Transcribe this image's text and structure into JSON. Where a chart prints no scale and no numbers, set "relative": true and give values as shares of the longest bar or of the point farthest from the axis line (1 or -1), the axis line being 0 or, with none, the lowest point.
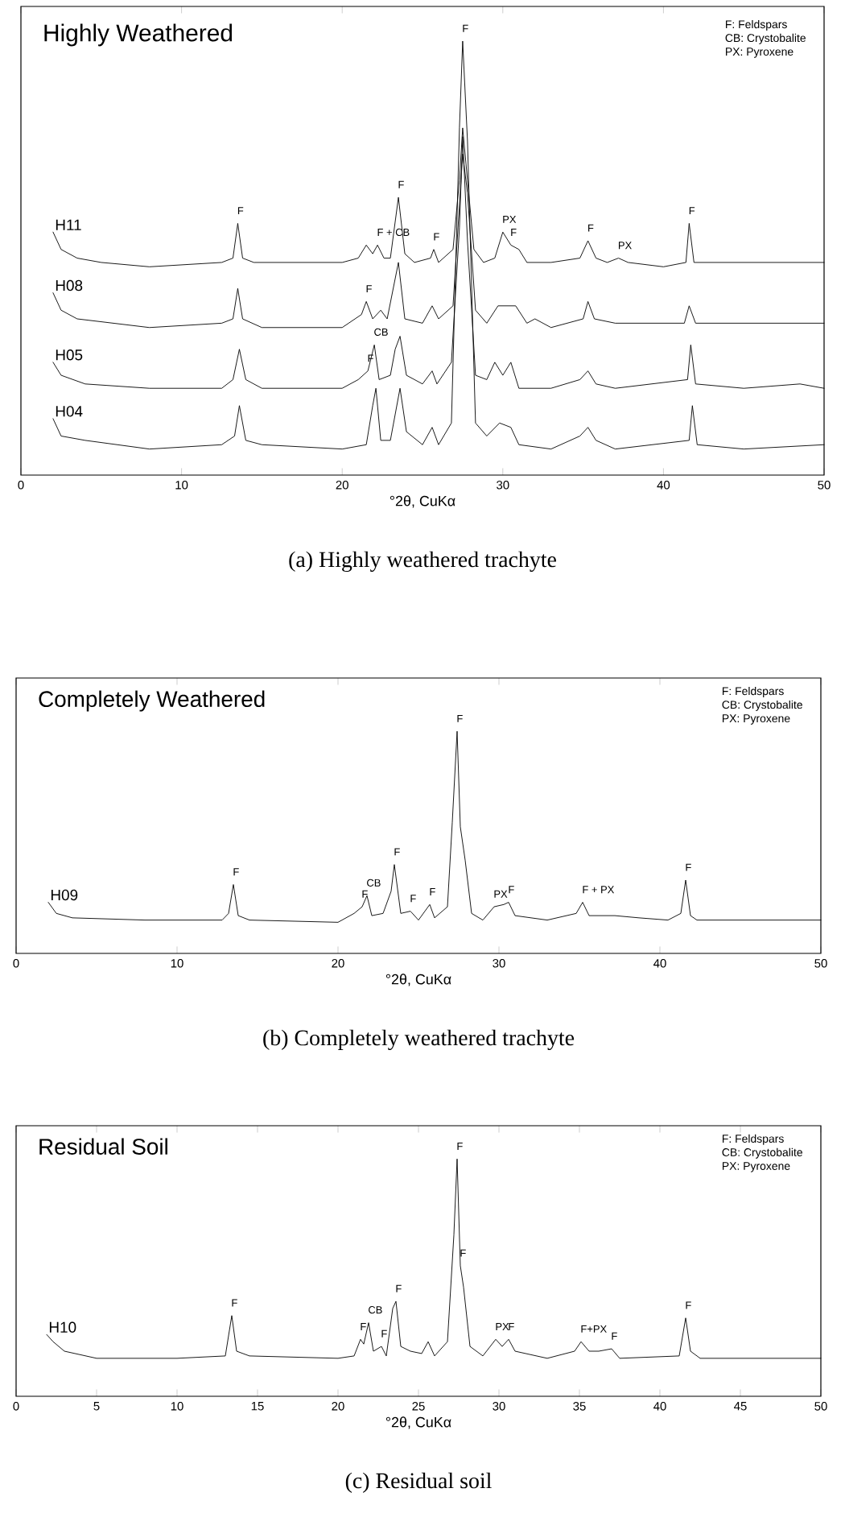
{
  "chart_data": [
    {
      "type": "line",
      "title": "Highly Weathered",
      "xlabel": "°2θ, CuKα",
      "xlim": [
        0,
        50
      ],
      "xticks": [
        0,
        10,
        20,
        30,
        40,
        50
      ],
      "relative": true,
      "series": [
        {
          "name": "H11",
          "color": "#000000",
          "x": [
            2.0,
            2.5,
            3.5,
            5,
            8,
            12.5,
            13.2,
            13.5,
            13.8,
            14.5,
            20,
            21,
            21.5,
            21.9,
            22.2,
            22.6,
            23.0,
            23.5,
            23.9,
            24.5,
            25.5,
            25.7,
            26.0,
            26.9,
            27.3,
            27.5,
            27.8,
            28.2,
            28.8,
            29.5,
            30,
            30.5,
            31,
            31.5,
            33,
            34.8,
            35.3,
            35.8,
            36.5,
            37.2,
            37.8,
            40,
            41.4,
            41.6,
            41.9,
            44,
            50
          ],
          "values": [
            0.56,
            0.52,
            0.5,
            0.49,
            0.48,
            0.49,
            0.5,
            0.58,
            0.5,
            0.49,
            0.49,
            0.5,
            0.53,
            0.51,
            0.53,
            0.5,
            0.5,
            0.64,
            0.51,
            0.49,
            0.5,
            0.52,
            0.49,
            0.52,
            0.68,
            0.8,
            0.68,
            0.52,
            0.49,
            0.5,
            0.56,
            0.53,
            0.52,
            0.49,
            0.49,
            0.5,
            0.54,
            0.5,
            0.49,
            0.5,
            0.49,
            0.48,
            0.49,
            0.58,
            0.49,
            0.49,
            0.49
          ]
        },
        {
          "name": "H08",
          "color": "#000000",
          "x": [
            2.0,
            2.5,
            3.5,
            8,
            12.5,
            13.2,
            13.5,
            13.8,
            15,
            20,
            21.2,
            21.5,
            21.9,
            22.4,
            22.8,
            23.5,
            23.9,
            25,
            25.6,
            26,
            26.9,
            27.4,
            27.5,
            27.8,
            28.3,
            29,
            29.7,
            30.3,
            30.8,
            31.5,
            32,
            33,
            35.0,
            35.3,
            35.7,
            37,
            41.3,
            41.6,
            42,
            50
          ],
          "values": [
            0.42,
            0.38,
            0.36,
            0.34,
            0.35,
            0.36,
            0.43,
            0.36,
            0.34,
            0.34,
            0.37,
            0.4,
            0.36,
            0.38,
            0.36,
            0.49,
            0.36,
            0.35,
            0.39,
            0.36,
            0.39,
            0.68,
            0.74,
            0.65,
            0.38,
            0.35,
            0.39,
            0.39,
            0.39,
            0.35,
            0.36,
            0.34,
            0.36,
            0.4,
            0.36,
            0.35,
            0.35,
            0.39,
            0.35,
            0.35
          ]
        },
        {
          "name": "H05",
          "color": "#000000",
          "x": [
            2.0,
            2.5,
            4,
            8,
            12.5,
            13.2,
            13.6,
            14.0,
            15,
            20,
            21.0,
            21.6,
            22.0,
            22.3,
            23.0,
            23.3,
            23.6,
            24.0,
            25.0,
            25.6,
            25.9,
            26.8,
            27.3,
            27.5,
            27.8,
            28.3,
            29,
            29.5,
            30,
            30.5,
            31,
            33,
            34.8,
            35.3,
            35.8,
            37,
            41.5,
            41.7,
            42.0,
            45,
            48.5,
            50
          ],
          "values": [
            0.26,
            0.23,
            0.21,
            0.2,
            0.2,
            0.22,
            0.29,
            0.22,
            0.2,
            0.2,
            0.22,
            0.24,
            0.3,
            0.22,
            0.23,
            0.29,
            0.32,
            0.23,
            0.21,
            0.24,
            0.21,
            0.26,
            0.57,
            0.78,
            0.54,
            0.23,
            0.22,
            0.26,
            0.23,
            0.26,
            0.2,
            0.2,
            0.22,
            0.24,
            0.21,
            0.2,
            0.22,
            0.3,
            0.21,
            0.2,
            0.21,
            0.2
          ]
        },
        {
          "name": "H04",
          "color": "#000000",
          "x": [
            2.0,
            2.5,
            4,
            8,
            12.5,
            13.3,
            13.6,
            14.0,
            15,
            20,
            21.5,
            21.9,
            22.1,
            22.4,
            23.0,
            23.6,
            24.0,
            25,
            25.6,
            26.0,
            26.8,
            27.3,
            27.5,
            27.8,
            28.3,
            29,
            29.8,
            30.5,
            31.0,
            33,
            34.8,
            35.3,
            35.8,
            37,
            41.6,
            41.8,
            42.1,
            45,
            50
          ],
          "values": [
            0.13,
            0.09,
            0.08,
            0.06,
            0.07,
            0.09,
            0.16,
            0.08,
            0.07,
            0.06,
            0.07,
            0.16,
            0.2,
            0.08,
            0.08,
            0.2,
            0.1,
            0.07,
            0.11,
            0.07,
            0.12,
            0.8,
            1.0,
            0.77,
            0.12,
            0.09,
            0.12,
            0.11,
            0.07,
            0.06,
            0.09,
            0.11,
            0.08,
            0.06,
            0.08,
            0.16,
            0.07,
            0.06,
            0.07
          ]
        }
      ],
      "annotations": [
        {
          "text": "F",
          "x": 13.5,
          "y": 0.58
        },
        {
          "text": "F + CB",
          "x": 22.2,
          "y": 0.53
        },
        {
          "text": "F",
          "x": 23.5,
          "y": 0.64
        },
        {
          "text": "F",
          "x": 25.7,
          "y": 0.52
        },
        {
          "text": "F",
          "x": 27.5,
          "y": 1.0
        },
        {
          "text": "PX",
          "x": 30,
          "y": 0.56
        },
        {
          "text": "F",
          "x": 30.5,
          "y": 0.53
        },
        {
          "text": "F",
          "x": 35.3,
          "y": 0.54
        },
        {
          "text": "PX",
          "x": 37.2,
          "y": 0.5
        },
        {
          "text": "F",
          "x": 41.6,
          "y": 0.58
        },
        {
          "text": "F",
          "x": 21.5,
          "y": 0.4
        },
        {
          "text": "CB",
          "x": 22.0,
          "y": 0.3
        },
        {
          "text": "F",
          "x": 21.6,
          "y": 0.24
        },
        "F: Feldspars",
        "CB: Crystobalite",
        "PX: Pyroxene",
        "(a) Highly weathered trachyte"
      ]
    },
    {
      "type": "line",
      "title": "Completely Weathered",
      "xlabel": "°2θ, CuKα",
      "xlim": [
        0,
        50
      ],
      "xticks": [
        0,
        10,
        20,
        30,
        40,
        50
      ],
      "relative": true,
      "series": [
        {
          "name": "H09",
          "color": "#000000",
          "x": [
            2.0,
            2.5,
            3.5,
            8,
            12.8,
            13.2,
            13.5,
            13.8,
            14.5,
            20,
            21.0,
            21.5,
            21.8,
            22.1,
            22.8,
            23.3,
            23.5,
            23.9,
            24.5,
            25,
            25.7,
            26.0,
            26.8,
            27.1,
            27.4,
            27.6,
            27.9,
            28.3,
            29,
            29.7,
            30.3,
            30.6,
            31,
            33,
            34.8,
            35.2,
            35.6,
            37.2,
            38.7,
            40.5,
            41.3,
            41.6,
            41.9,
            42.3,
            50
          ],
          "values": [
            0.23,
            0.18,
            0.16,
            0.15,
            0.15,
            0.18,
            0.31,
            0.17,
            0.15,
            0.14,
            0.18,
            0.21,
            0.26,
            0.17,
            0.18,
            0.28,
            0.4,
            0.18,
            0.19,
            0.15,
            0.22,
            0.16,
            0.21,
            0.59,
            1.0,
            0.57,
            0.42,
            0.18,
            0.15,
            0.21,
            0.22,
            0.23,
            0.17,
            0.15,
            0.18,
            0.23,
            0.17,
            0.17,
            0.16,
            0.15,
            0.18,
            0.33,
            0.17,
            0.15,
            0.15
          ]
        }
      ],
      "annotations": [
        {
          "text": "F",
          "x": 13.5,
          "y": 0.31
        },
        {
          "text": "F",
          "x": 21.5,
          "y": 0.21
        },
        {
          "text": "CB",
          "x": 21.8,
          "y": 0.26
        },
        {
          "text": "F",
          "x": 23.5,
          "y": 0.4
        },
        {
          "text": "F",
          "x": 24.5,
          "y": 0.19
        },
        {
          "text": "F",
          "x": 25.7,
          "y": 0.22
        },
        {
          "text": "F",
          "x": 27.4,
          "y": 1.0
        },
        {
          "text": "PX",
          "x": 29.7,
          "y": 0.21
        },
        {
          "text": "F",
          "x": 30.6,
          "y": 0.23
        },
        {
          "text": "F + PX",
          "x": 35.2,
          "y": 0.23
        },
        {
          "text": "F",
          "x": 41.6,
          "y": 0.33
        },
        "F: Feldspars",
        "CB: Crystobalite",
        "PX: Pyroxene",
        "(b) Completely weathered trachyte"
      ]
    },
    {
      "type": "line",
      "title": "Residual Soil",
      "xlabel": "°2θ, CuKα",
      "xlim": [
        0,
        50
      ],
      "xticks": [
        0,
        5,
        10,
        15,
        20,
        25,
        30,
        35,
        40,
        45,
        50
      ],
      "relative": true,
      "series": [
        {
          "name": "H10",
          "color": "#000000",
          "x": [
            1.9,
            2.3,
            3,
            5,
            10,
            13.0,
            13.4,
            13.7,
            14.5,
            20,
            21,
            21.4,
            21.6,
            21.9,
            22.2,
            22.7,
            23.0,
            23.4,
            23.6,
            23.9,
            24.5,
            25.2,
            25.6,
            26.0,
            26.8,
            27.2,
            27.4,
            27.6,
            27.8,
            28.2,
            29,
            29.8,
            30.2,
            30.6,
            31,
            33,
            34.7,
            35.1,
            35.6,
            36.2,
            37,
            37.5,
            41.2,
            41.6,
            41.9,
            42.5,
            48,
            50
          ],
          "values": [
            0.26,
            0.23,
            0.19,
            0.16,
            0.16,
            0.17,
            0.34,
            0.19,
            0.17,
            0.16,
            0.17,
            0.24,
            0.22,
            0.31,
            0.19,
            0.21,
            0.17,
            0.37,
            0.4,
            0.21,
            0.19,
            0.18,
            0.23,
            0.17,
            0.23,
            0.68,
            1.0,
            0.55,
            0.46,
            0.21,
            0.17,
            0.24,
            0.21,
            0.24,
            0.19,
            0.16,
            0.19,
            0.23,
            0.19,
            0.19,
            0.2,
            0.16,
            0.17,
            0.33,
            0.19,
            0.16,
            0.16,
            0.16
          ]
        }
      ],
      "annotations": [
        {
          "text": "F",
          "x": 13.4,
          "y": 0.34
        },
        {
          "text": "F",
          "x": 21.4,
          "y": 0.24
        },
        {
          "text": "CB",
          "x": 21.9,
          "y": 0.31
        },
        {
          "text": "F",
          "x": 22.7,
          "y": 0.21
        },
        {
          "text": "F",
          "x": 23.6,
          "y": 0.4
        },
        {
          "text": "F",
          "x": 27.4,
          "y": 1.0
        },
        {
          "text": "F",
          "x": 27.6,
          "y": 0.55
        },
        {
          "text": "PX",
          "x": 29.8,
          "y": 0.24
        },
        {
          "text": "F",
          "x": 30.6,
          "y": 0.24
        },
        {
          "text": "F+PX",
          "x": 35.1,
          "y": 0.23
        },
        {
          "text": "F",
          "x": 37,
          "y": 0.2
        },
        {
          "text": "F",
          "x": 41.6,
          "y": 0.33
        },
        "F: Feldspars",
        "CB: Crystobalite",
        "PX: Pyroxene",
        "(c) Residual soil"
      ]
    }
  ]
}
